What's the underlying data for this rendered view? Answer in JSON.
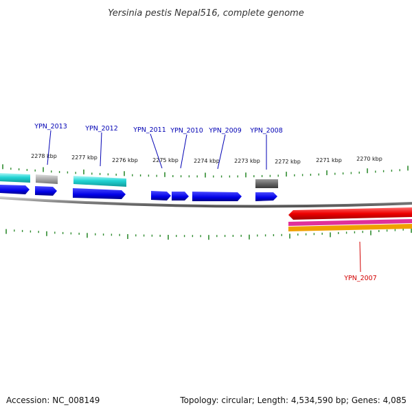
{
  "title": "Yersinia pestis Nepal516, complete genome",
  "footer": {
    "accession": "Accession: NC_008149",
    "summary": "Topology: circular; Length: 4,534,590 bp; Genes: 4,085"
  },
  "ruler": {
    "unit": "kbp",
    "labels": [
      "2278 kbp",
      "2277 kbp",
      "2276 kbp",
      "2275 kbp",
      "2274 kbp",
      "2273 kbp",
      "2272 kbp",
      "2271 kbp",
      "2270 kbp"
    ]
  },
  "genes": [
    {
      "name": "YPN_2013",
      "color": "#0000b4"
    },
    {
      "name": "YPN_2012",
      "color": "#0000b4"
    },
    {
      "name": "YPN_2011",
      "color": "#0000b4"
    },
    {
      "name": "YPN_2010",
      "color": "#0000b4"
    },
    {
      "name": "YPN_2009",
      "color": "#0000b4"
    },
    {
      "name": "YPN_2008",
      "color": "#0000b4"
    },
    {
      "name": "YPN_2007",
      "color": "#d20000"
    }
  ],
  "colors": {
    "forward_cds": "#0000e6",
    "reverse_cds": "#ee0000",
    "tick": "#2e8b2e",
    "backbone": "#808080",
    "feature_cyan": "#22d4d4",
    "feature_gray": "#999999",
    "feature_dark_gray": "#666666",
    "feature_magenta": "#e0309a",
    "feature_orange": "#f0a000"
  }
}
